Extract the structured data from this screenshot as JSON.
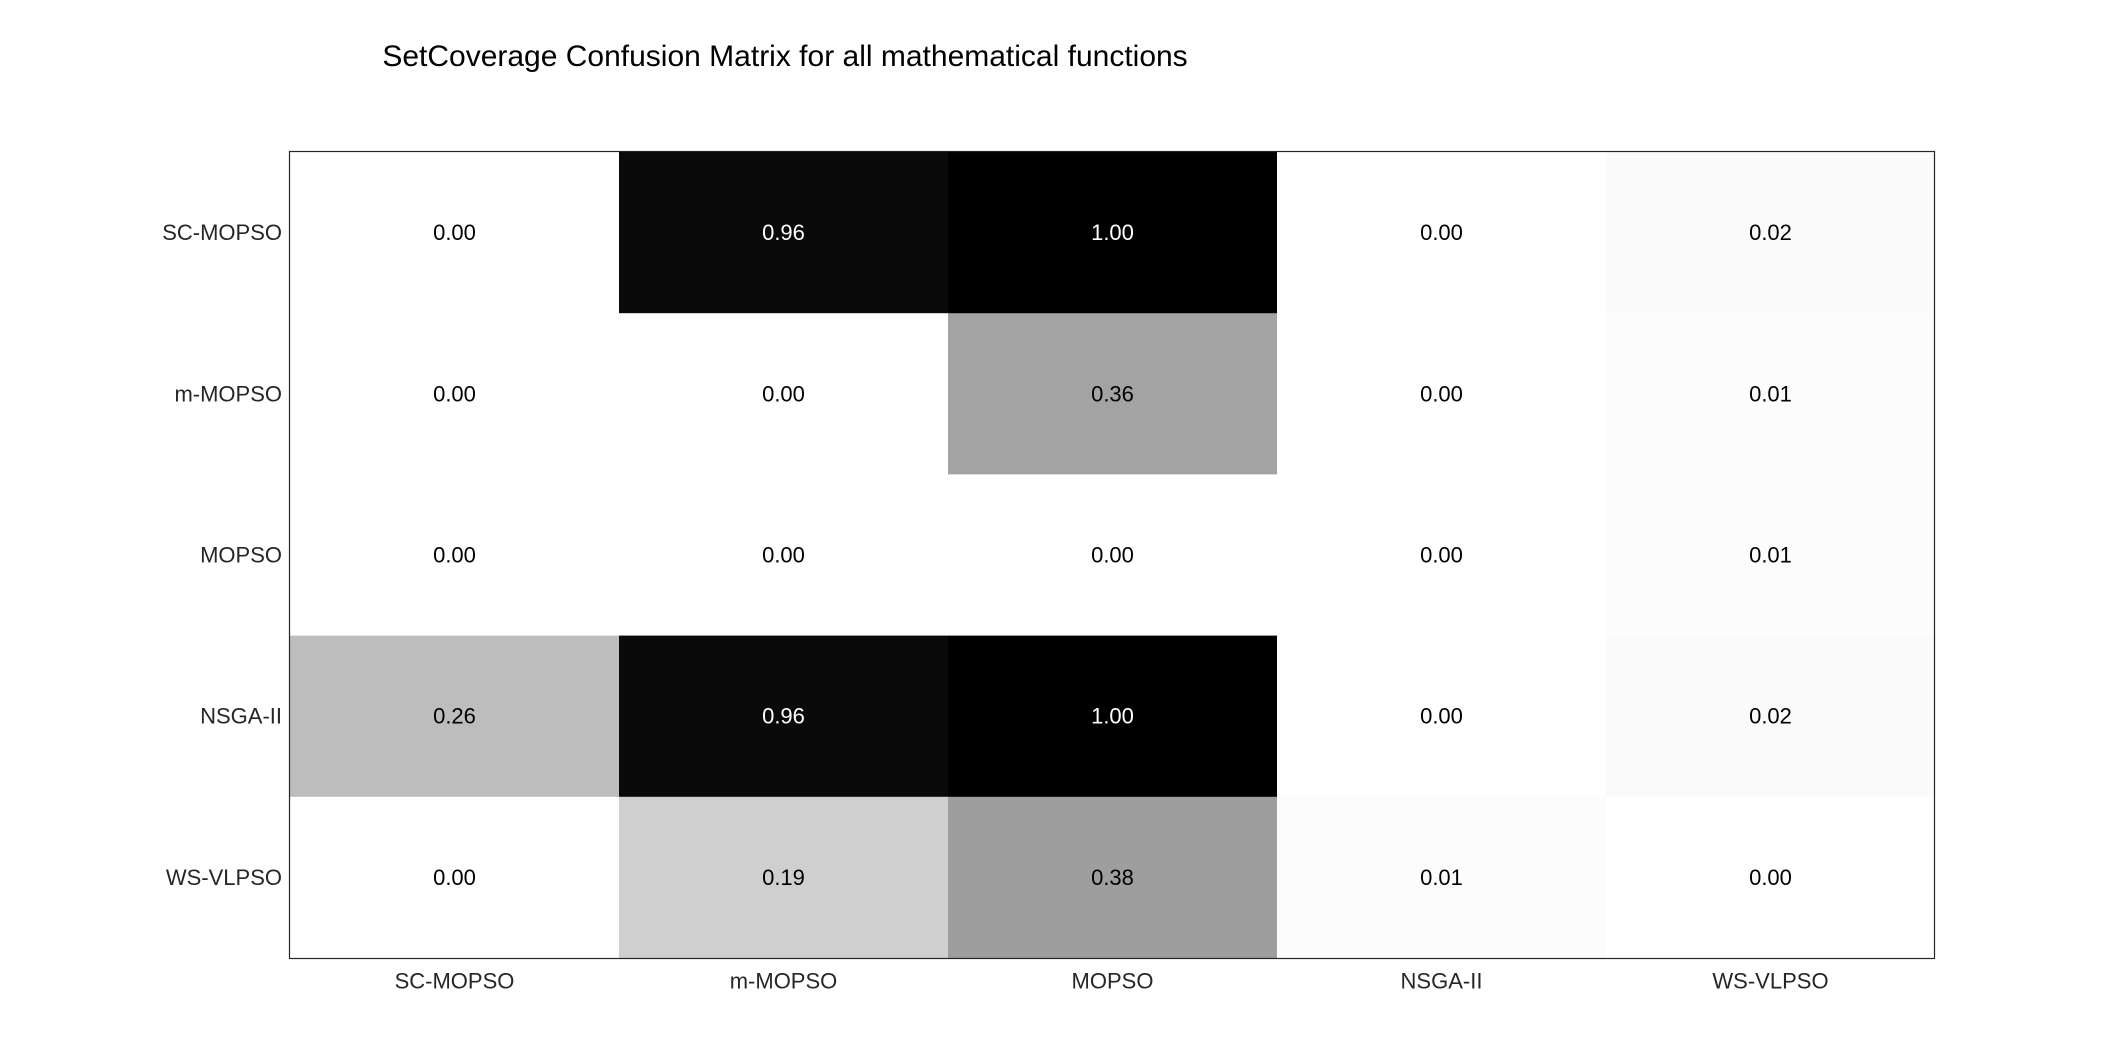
{
  "chart_data": {
    "type": "heatmap",
    "title": "SetCoverage Confusion Matrix for all mathematical functions",
    "x_categories": [
      "SC-MOPSO",
      "m-MOPSO",
      "MOPSO",
      "NSGA-II",
      "WS-VLPSO"
    ],
    "y_categories": [
      "SC-MOPSO",
      "m-MOPSO",
      "MOPSO",
      "NSGA-II",
      "WS-VLPSO"
    ],
    "values": [
      [
        0.0,
        0.96,
        1.0,
        0.0,
        0.02
      ],
      [
        0.0,
        0.0,
        0.36,
        0.0,
        0.01
      ],
      [
        0.0,
        0.0,
        0.0,
        0.0,
        0.01
      ],
      [
        0.26,
        0.96,
        1.0,
        0.0,
        0.02
      ],
      [
        0.0,
        0.19,
        0.38,
        0.01,
        0.0
      ]
    ],
    "value_format": "0.00",
    "colormap": "white-to-black",
    "color_range": [
      0,
      1
    ],
    "low_color": "#ffffff",
    "high_color": "#000000",
    "label_dark_color": "#000000",
    "label_light_color": "#ffffff",
    "frame_color": "#262626",
    "grid": false,
    "legend": "none"
  }
}
